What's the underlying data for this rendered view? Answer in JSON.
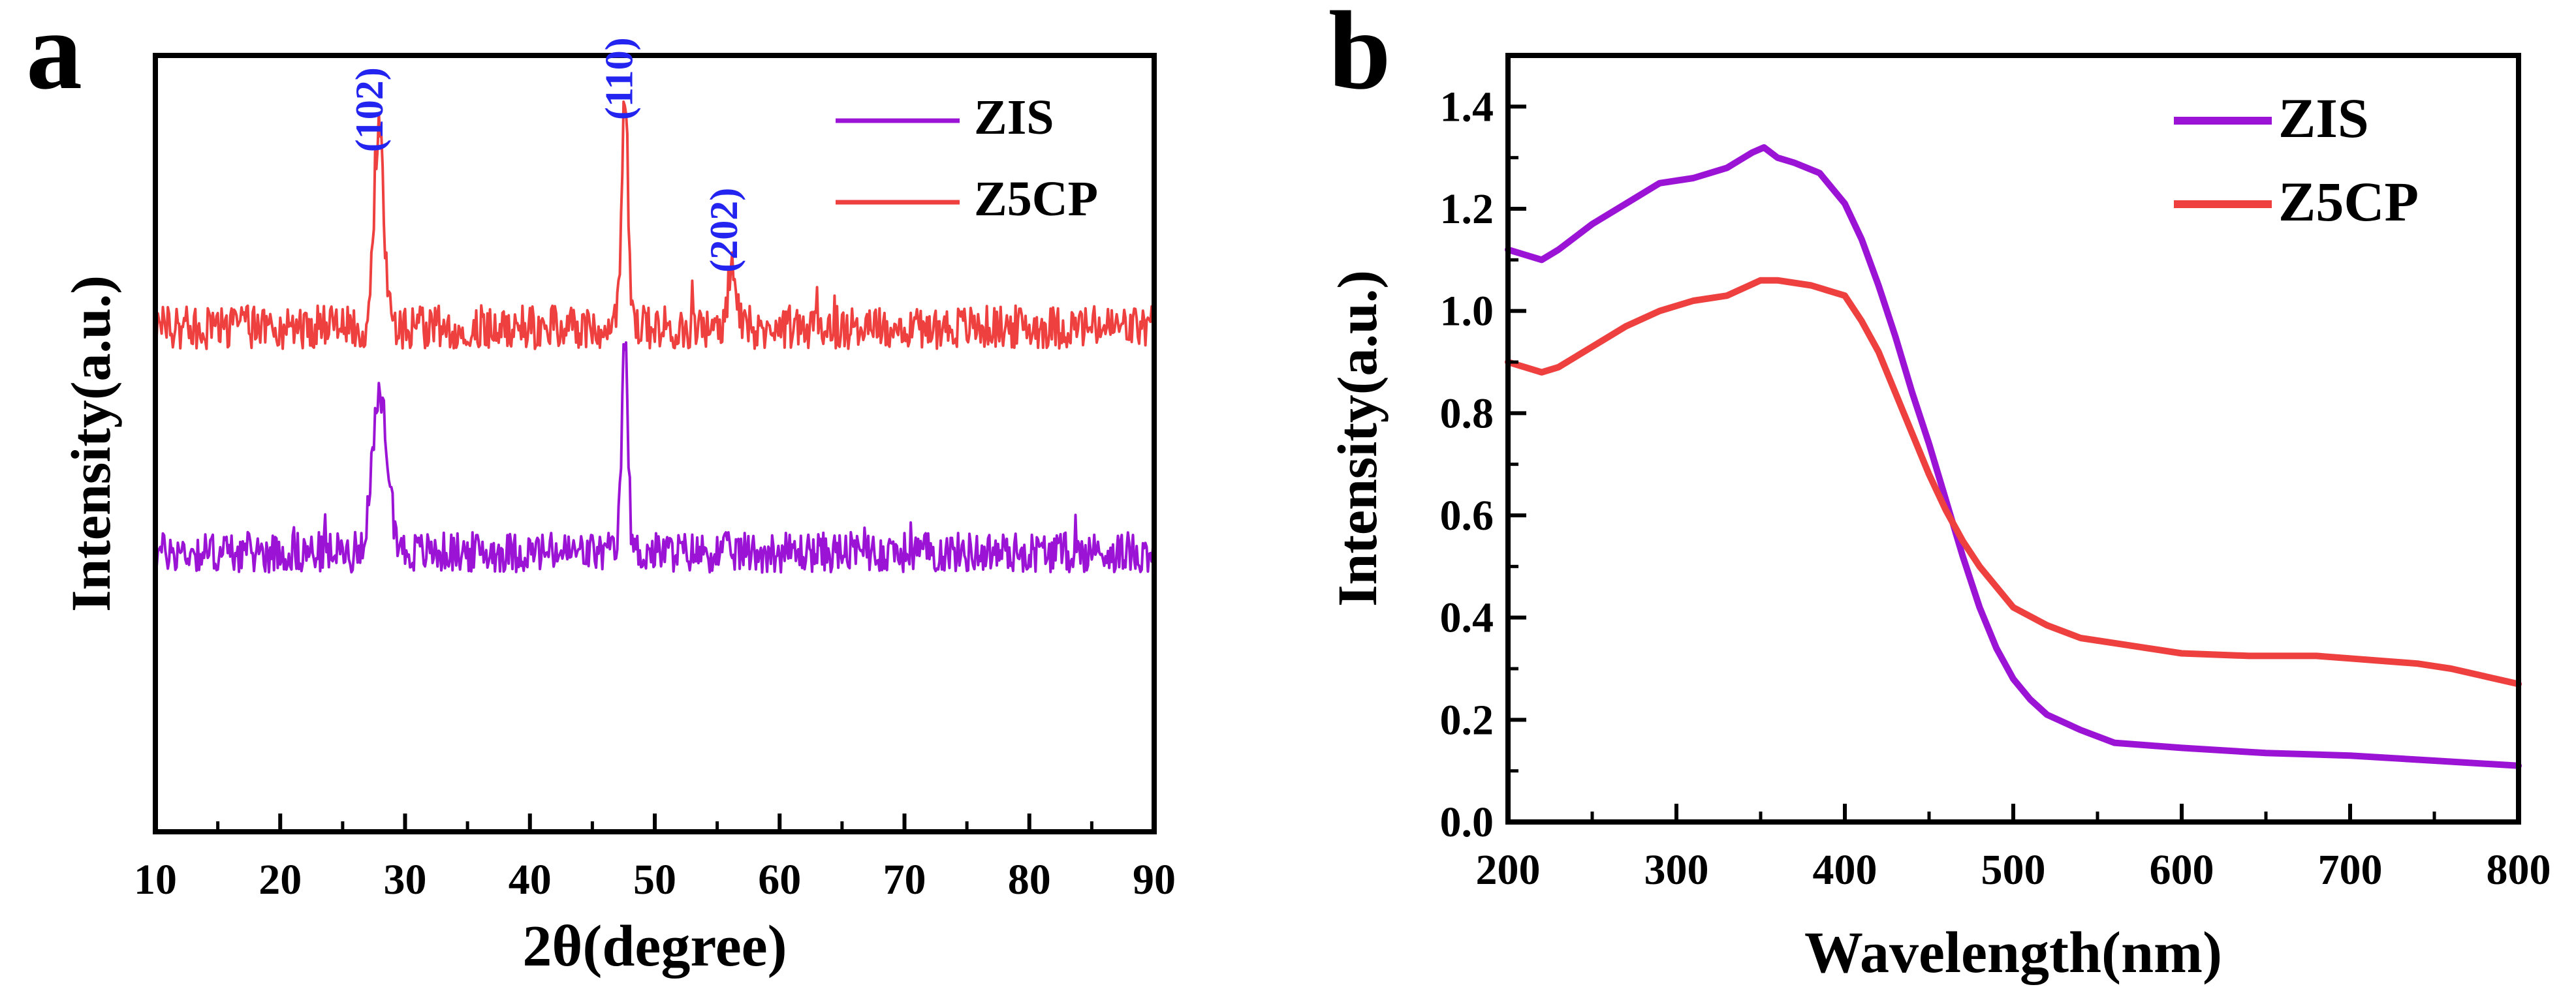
{
  "figure": {
    "panel_a_letter": "a",
    "panel_b_letter": "b"
  },
  "colors": {
    "zis": "#9b14d6",
    "z5cp": "#ef4040",
    "miller": "#2424f0",
    "axis": "#000000"
  },
  "chart_data": [
    {
      "panel": "a",
      "type": "line",
      "title": "",
      "xlabel": "2θ(degree)",
      "ylabel": "Intensity(a.u.)",
      "xlim": [
        10,
        90
      ],
      "ylim": [
        0,
        1
      ],
      "y_ticks_shown": false,
      "x_ticks": [
        10,
        20,
        30,
        40,
        50,
        60,
        70,
        80,
        90
      ],
      "legend": {
        "placement": "top-right",
        "entries": [
          "ZIS",
          "Z5CP"
        ]
      },
      "series": [
        {
          "name": "ZIS",
          "color": "#9b14d6",
          "baseline": 0.36,
          "noise": 0.026,
          "peaks": [
            {
              "two_theta": 28.0,
              "height": 0.195,
              "width": 0.9
            },
            {
              "two_theta": 47.6,
              "height": 0.27,
              "width": 0.35
            }
          ]
        },
        {
          "name": "Z5CP",
          "color": "#ef4040",
          "baseline": 0.65,
          "noise": 0.028,
          "peaks": [
            {
              "two_theta": 27.9,
              "height": 0.26,
              "width": 0.55
            },
            {
              "two_theta": 47.6,
              "height": 0.31,
              "width": 0.35
            },
            {
              "two_theta": 56.2,
              "height": 0.085,
              "width": 0.4
            }
          ]
        }
      ],
      "annotations": [
        {
          "text": "(102)",
          "x": 28.2,
          "y": 0.93,
          "color": "#2424f0"
        },
        {
          "text": "(110)",
          "x": 48.2,
          "y": 0.97,
          "color": "#2424f0"
        },
        {
          "text": "(202)",
          "x": 56.6,
          "y": 0.775,
          "color": "#2424f0"
        }
      ]
    },
    {
      "panel": "b",
      "type": "line",
      "title": "",
      "xlabel": "Wavelength(nm)",
      "ylabel": "Intensity(a.u.)",
      "xlim": [
        200,
        800
      ],
      "ylim": [
        0,
        1.5
      ],
      "x_ticks": [
        200,
        300,
        400,
        500,
        600,
        700,
        800
      ],
      "y_ticks": [
        0.0,
        0.2,
        0.4,
        0.6,
        0.8,
        1.0,
        1.2,
        1.4
      ],
      "y_tick_labels": [
        "0.0",
        "0.2",
        "0.4",
        "0.6",
        "0.8",
        "1.0",
        "1.2",
        "1.4"
      ],
      "legend": {
        "placement": "top-right",
        "entries": [
          "ZIS",
          "Z5CP"
        ]
      },
      "series": [
        {
          "name": "ZIS",
          "color": "#9b14d6",
          "x": [
            200,
            210,
            220,
            230,
            250,
            270,
            290,
            310,
            330,
            345,
            352,
            360,
            370,
            385,
            400,
            410,
            420,
            430,
            440,
            450,
            460,
            470,
            480,
            490,
            500,
            510,
            520,
            540,
            560,
            580,
            600,
            650,
            700,
            750,
            800
          ],
          "y": [
            1.12,
            1.11,
            1.1,
            1.12,
            1.17,
            1.21,
            1.25,
            1.26,
            1.28,
            1.31,
            1.32,
            1.3,
            1.29,
            1.27,
            1.21,
            1.14,
            1.05,
            0.95,
            0.84,
            0.74,
            0.63,
            0.52,
            0.42,
            0.34,
            0.28,
            0.24,
            0.21,
            0.18,
            0.155,
            0.15,
            0.145,
            0.135,
            0.13,
            0.12,
            0.11
          ]
        },
        {
          "name": "Z5CP",
          "color": "#ef4040",
          "x": [
            200,
            210,
            220,
            230,
            250,
            270,
            290,
            310,
            330,
            350,
            360,
            380,
            400,
            410,
            420,
            430,
            440,
            450,
            460,
            470,
            480,
            490,
            500,
            520,
            540,
            560,
            580,
            600,
            640,
            680,
            700,
            740,
            760,
            780,
            800
          ],
          "y": [
            0.9,
            0.89,
            0.88,
            0.89,
            0.93,
            0.97,
            1.0,
            1.02,
            1.03,
            1.06,
            1.06,
            1.05,
            1.03,
            0.98,
            0.92,
            0.84,
            0.76,
            0.68,
            0.61,
            0.55,
            0.5,
            0.46,
            0.42,
            0.385,
            0.36,
            0.35,
            0.34,
            0.33,
            0.325,
            0.325,
            0.32,
            0.31,
            0.3,
            0.285,
            0.27
          ]
        }
      ]
    }
  ]
}
